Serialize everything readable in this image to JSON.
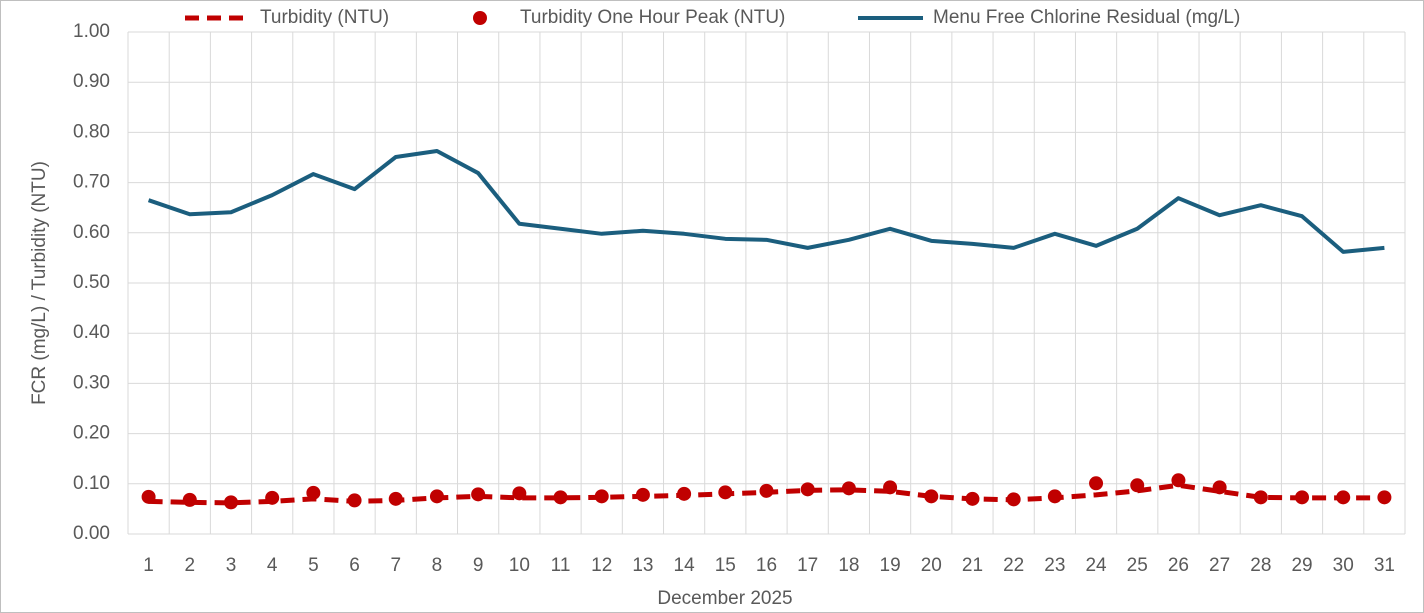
{
  "chart_data": {
    "type": "line",
    "x_label": "December 2025",
    "y_label": "FCR (mg/L) / Turbidity (NTU)",
    "categories": [
      "1",
      "2",
      "3",
      "4",
      "5",
      "6",
      "7",
      "8",
      "9",
      "10",
      "11",
      "12",
      "13",
      "14",
      "15",
      "16",
      "17",
      "18",
      "19",
      "20",
      "21",
      "22",
      "23",
      "24",
      "25",
      "26",
      "27",
      "28",
      "29",
      "30",
      "31"
    ],
    "series": [
      {
        "name": "Turbidity (NTU)",
        "color": "#c00000",
        "style": "dashed",
        "values": [
          0.065,
          0.063,
          0.062,
          0.065,
          0.07,
          0.065,
          0.067,
          0.072,
          0.075,
          0.072,
          0.072,
          0.073,
          0.075,
          0.077,
          0.08,
          0.083,
          0.087,
          0.088,
          0.085,
          0.075,
          0.07,
          0.068,
          0.072,
          0.078,
          0.086,
          0.097,
          0.085,
          0.073,
          0.072,
          0.072,
          0.072
        ]
      },
      {
        "name": "Turbidity One Hour Peak (NTU)",
        "color": "#c00000",
        "style": "markers",
        "values": [
          0.074,
          0.068,
          0.063,
          0.072,
          0.082,
          0.067,
          0.07,
          0.075,
          0.079,
          0.081,
          0.073,
          0.075,
          0.078,
          0.08,
          0.083,
          0.086,
          0.089,
          0.091,
          0.093,
          0.075,
          0.07,
          0.069,
          0.075,
          0.101,
          0.097,
          0.107,
          0.093,
          0.073,
          0.073,
          0.073,
          0.073
        ]
      },
      {
        "name": "Menu Free Chlorine Residual (mg/L)",
        "color": "#1b5e7e",
        "style": "solid",
        "values": [
          0.665,
          0.637,
          0.641,
          0.675,
          0.717,
          0.687,
          0.751,
          0.763,
          0.719,
          0.618,
          0.608,
          0.598,
          0.604,
          0.598,
          0.588,
          0.586,
          0.57,
          0.586,
          0.608,
          0.584,
          0.578,
          0.57,
          0.598,
          0.574,
          0.608,
          0.669,
          0.635,
          0.655,
          0.633,
          0.562,
          0.57
        ]
      }
    ],
    "ylim": [
      0,
      1
    ],
    "yticks": [
      {
        "value": 0,
        "label": "0.00"
      },
      {
        "value": 0.1,
        "label": "0.10"
      },
      {
        "value": 0.2,
        "label": "0.20"
      },
      {
        "value": 0.3,
        "label": "0.30"
      },
      {
        "value": 0.4,
        "label": "0.40"
      },
      {
        "value": 0.5,
        "label": "0.50"
      },
      {
        "value": 0.6,
        "label": "0.60"
      },
      {
        "value": 0.7,
        "label": "0.70"
      },
      {
        "value": 0.8,
        "label": "0.80"
      },
      {
        "value": 0.9,
        "label": "0.90"
      },
      {
        "value": 1,
        "label": "1.00"
      }
    ],
    "grid": true,
    "legend": "top"
  }
}
